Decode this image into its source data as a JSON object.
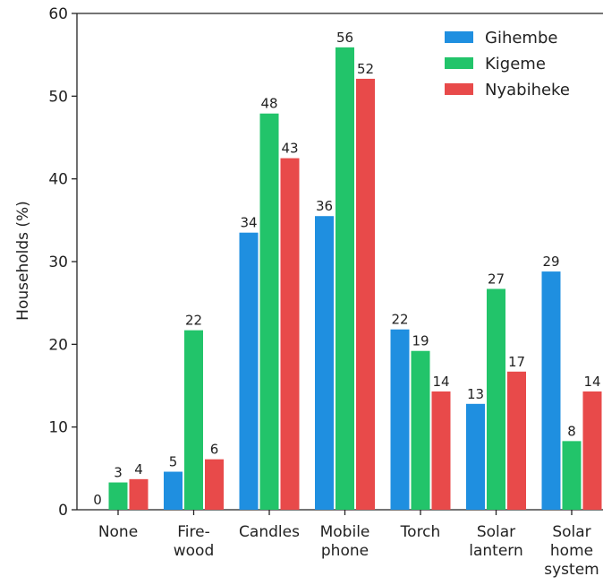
{
  "chart_data": {
    "type": "bar",
    "title": "",
    "xlabel": "",
    "ylabel": "Households (%)",
    "ylim": [
      0,
      60
    ],
    "yticks": [
      0,
      10,
      20,
      30,
      40,
      50,
      60
    ],
    "categories": [
      "None",
      "Fire-\nwood",
      "Candles",
      "Mobile\nphone",
      "Torch",
      "Solar\nlantern",
      "Solar\nhome\nsystem"
    ],
    "series": [
      {
        "name": "Gihembe",
        "color": "#1f8fe0",
        "values": [
          0,
          4.6,
          33.5,
          35.5,
          21.8,
          12.8,
          28.8
        ],
        "labels": [
          "0",
          "5",
          "34",
          "36",
          "22",
          "13",
          "29"
        ]
      },
      {
        "name": "Kigeme",
        "color": "#22c46a",
        "values": [
          3.3,
          21.7,
          47.9,
          55.9,
          19.2,
          26.7,
          8.3
        ],
        "labels": [
          "3",
          "22",
          "48",
          "56",
          "19",
          "27",
          "8"
        ]
      },
      {
        "name": "Nyabiheke",
        "color": "#e84a4a",
        "values": [
          3.7,
          6.1,
          42.5,
          52.1,
          14.3,
          16.7,
          14.3
        ],
        "labels": [
          "4",
          "6",
          "43",
          "52",
          "14",
          "17",
          "14"
        ]
      }
    ],
    "legend_position": "top-right",
    "grid": false
  }
}
